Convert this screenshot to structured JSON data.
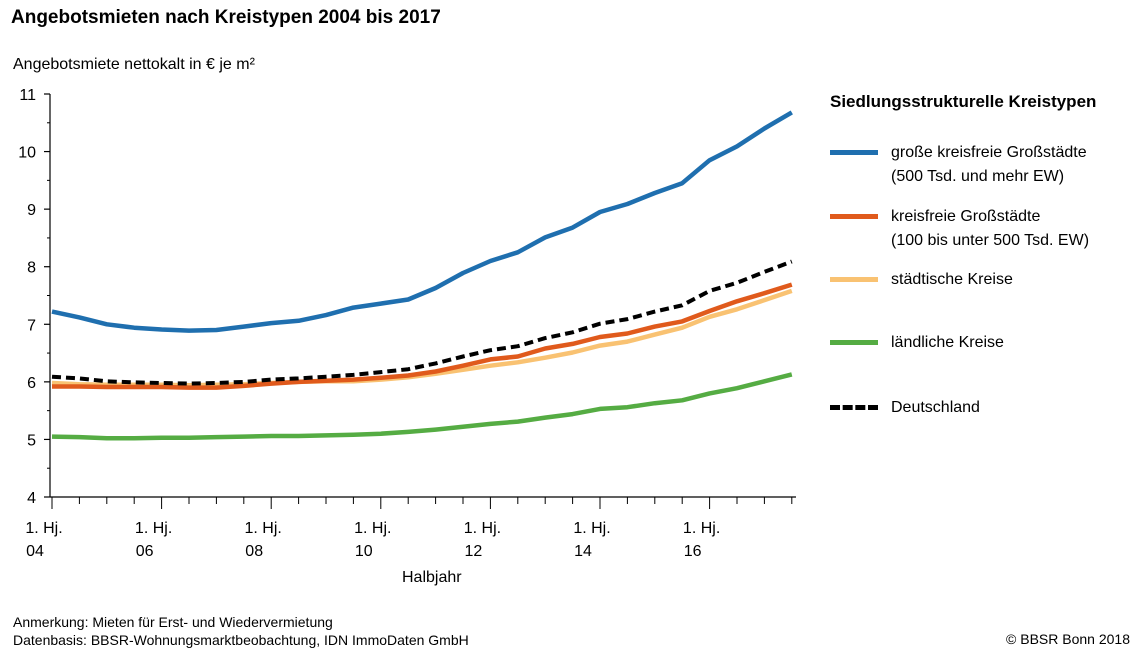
{
  "header": {
    "title": "Angebotsmieten nach Kreistypen 2004 bis 2017",
    "ylabel": "Angebotsmiete nettokalt in € je m²",
    "xlabel": "Halbjahr"
  },
  "legend": {
    "title": "Siedlungsstrukturelle Kreistypen",
    "items": [
      {
        "label": "große kreisfreie Großstädte\n(500 Tsd. und mehr EW)",
        "color": "#1f6faf",
        "style": "solid"
      },
      {
        "label": "kreisfreie Großstädte\n(100 bis unter 500 Tsd. EW)",
        "color": "#e05a1c",
        "style": "solid"
      },
      {
        "label": "städtische Kreise",
        "color": "#f9c272",
        "style": "solid"
      },
      {
        "label": "ländliche Kreise",
        "color": "#55ac43",
        "style": "solid"
      },
      {
        "label": "Deutschland",
        "color": "#000000",
        "style": "dashed"
      }
    ]
  },
  "footer": {
    "note1": "Anmerkung: Mieten für Erst- und Wiedervermietung",
    "note2": "Datenbasis: BBSR-Wohnungsmarktbeobachtung, IDN ImmoDaten GmbH",
    "copyright": "© BBSR Bonn 2018"
  },
  "chart_data": {
    "type": "line",
    "title": "Angebotsmieten nach Kreistypen 2004 bis 2017",
    "xlabel": "Halbjahr",
    "ylabel": "Angebotsmiete nettokalt in € je m²",
    "ylim": [
      4,
      11
    ],
    "yticks": [
      4,
      5,
      6,
      7,
      8,
      9,
      10,
      11
    ],
    "grid": false,
    "legend_position": "right",
    "x": [
      "1. Hj. 2004",
      "2. Hj. 2004",
      "1. Hj. 2005",
      "2. Hj. 2005",
      "1. Hj. 2006",
      "2. Hj. 2006",
      "1. Hj. 2007",
      "2. Hj. 2007",
      "1. Hj. 2008",
      "2. Hj. 2008",
      "1. Hj. 2009",
      "2. Hj. 2009",
      "1. Hj. 2010",
      "2. Hj. 2010",
      "1. Hj. 2011",
      "2. Hj. 2011",
      "1. Hj. 2012",
      "2. Hj. 2012",
      "1. Hj. 2013",
      "2. Hj. 2013",
      "1. Hj. 2014",
      "2. Hj. 2014",
      "1. Hj. 2015",
      "2. Hj. 2015",
      "1. Hj. 2016",
      "2. Hj. 2016",
      "1. Hj. 2017",
      "2. Hj. 2017"
    ],
    "xtick_labels": [
      {
        "line1": "1. Hj.",
        "line2": "04",
        "index": 0
      },
      {
        "line1": "1. Hj.",
        "line2": "06",
        "index": 4
      },
      {
        "line1": "1. Hj.",
        "line2": "08",
        "index": 8
      },
      {
        "line1": "1. Hj.",
        "line2": "10",
        "index": 12
      },
      {
        "line1": "1. Hj.",
        "line2": "12",
        "index": 16
      },
      {
        "line1": "1. Hj.",
        "line2": "14",
        "index": 20
      },
      {
        "line1": "1. Hj.",
        "line2": "16",
        "index": 24
      }
    ],
    "series": [
      {
        "name": "große kreisfreie Großstädte (500 Tsd. und mehr EW)",
        "color": "#1f6faf",
        "dashed": false,
        "values": [
          7.22,
          7.12,
          7.0,
          6.94,
          6.91,
          6.89,
          6.9,
          6.96,
          7.02,
          7.06,
          7.16,
          7.29,
          7.36,
          7.43,
          7.63,
          7.89,
          8.1,
          8.25,
          8.51,
          8.68,
          8.95,
          9.09,
          9.28,
          9.45,
          9.85,
          10.09,
          10.4,
          10.68
        ]
      },
      {
        "name": "kreisfreie Großstädte (100 bis unter 500 Tsd. EW)",
        "color": "#e05a1c",
        "dashed": false,
        "values": [
          5.92,
          5.92,
          5.91,
          5.91,
          5.91,
          5.9,
          5.9,
          5.93,
          5.97,
          6.0,
          6.02,
          6.04,
          6.07,
          6.11,
          6.18,
          6.28,
          6.39,
          6.44,
          6.58,
          6.66,
          6.78,
          6.84,
          6.96,
          7.05,
          7.23,
          7.4,
          7.54,
          7.69
        ]
      },
      {
        "name": "städtische Kreise",
        "color": "#f9c272",
        "dashed": false,
        "values": [
          5.98,
          5.96,
          5.95,
          5.95,
          5.95,
          5.94,
          5.95,
          5.96,
          5.98,
          6.0,
          6.01,
          6.01,
          6.04,
          6.08,
          6.14,
          6.21,
          6.28,
          6.34,
          6.42,
          6.51,
          6.63,
          6.7,
          6.82,
          6.94,
          7.13,
          7.26,
          7.42,
          7.58
        ]
      },
      {
        "name": "ländliche Kreise",
        "color": "#55ac43",
        "dashed": false,
        "values": [
          5.05,
          5.04,
          5.02,
          5.02,
          5.03,
          5.03,
          5.04,
          5.05,
          5.06,
          5.06,
          5.07,
          5.08,
          5.1,
          5.13,
          5.17,
          5.22,
          5.27,
          5.31,
          5.38,
          5.44,
          5.53,
          5.56,
          5.63,
          5.68,
          5.8,
          5.89,
          6.01,
          6.13
        ]
      },
      {
        "name": "Deutschland",
        "color": "#000000",
        "dashed": true,
        "values": [
          6.09,
          6.06,
          6.01,
          5.99,
          5.98,
          5.97,
          5.98,
          6.0,
          6.04,
          6.06,
          6.09,
          6.12,
          6.17,
          6.22,
          6.32,
          6.44,
          6.55,
          6.62,
          6.76,
          6.86,
          7.01,
          7.09,
          7.22,
          7.33,
          7.58,
          7.72,
          7.91,
          8.09
        ]
      }
    ]
  }
}
